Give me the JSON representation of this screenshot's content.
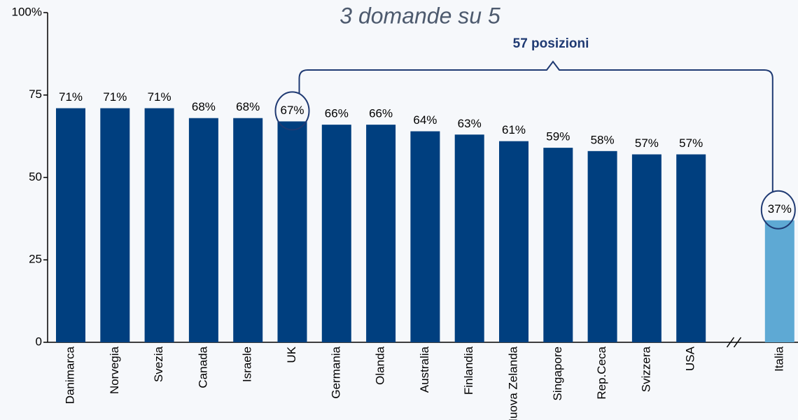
{
  "chart_data": {
    "type": "bar",
    "title": "3 domande su 5",
    "annotation": "57 posizioni",
    "categories": [
      "Danimarca",
      "Norvegia",
      "Svezia",
      "Canada",
      "Israele",
      "UK",
      "Germania",
      "Olanda",
      "Australia",
      "Finlandia",
      "Nuova Zelanda",
      "Singapore",
      "Rep.Ceca",
      "Svizzera",
      "USA",
      null,
      "Italia"
    ],
    "values": [
      71,
      71,
      71,
      68,
      68,
      67,
      66,
      66,
      64,
      63,
      61,
      59,
      58,
      57,
      57,
      null,
      37
    ],
    "value_labels": [
      "71%",
      "71%",
      "71%",
      "68%",
      "68%",
      "67%",
      "66%",
      "66%",
      "64%",
      "63%",
      "61%",
      "59%",
      "58%",
      "57%",
      "57%",
      null,
      "37%"
    ],
    "colors": [
      "#003f7f",
      "#003f7f",
      "#003f7f",
      "#003f7f",
      "#003f7f",
      "#003f7f",
      "#003f7f",
      "#003f7f",
      "#003f7f",
      "#003f7f",
      "#003f7f",
      "#003f7f",
      "#003f7f",
      "#003f7f",
      "#003f7f",
      null,
      "#5ea9d4"
    ],
    "ylim": [
      0,
      100
    ],
    "yticks": [
      0,
      25,
      50,
      75,
      {
        "value": 100,
        "label": "100%"
      }
    ]
  }
}
